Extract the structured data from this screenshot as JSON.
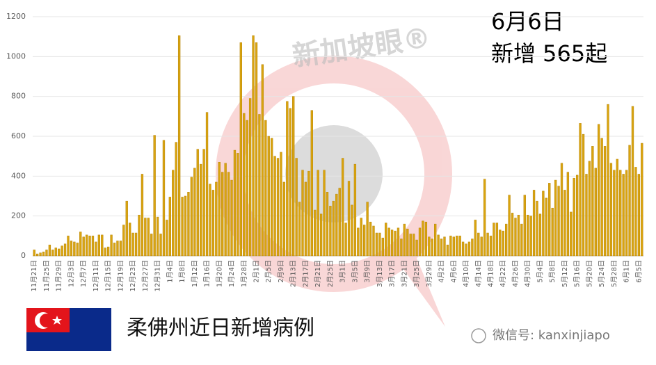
{
  "chart_data": {
    "type": "bar",
    "title": "6月6日",
    "subtitle": "新增 565起",
    "caption": "柔佛州近日新增病例",
    "watermark": "新加坡眼®",
    "source": "微信号: kanxinjiapo",
    "color": "#d9a40f",
    "grid": true,
    "ylim": [
      0,
      1200
    ],
    "yticks": [
      0,
      200,
      400,
      600,
      800,
      1000,
      1200
    ],
    "categories": [
      "11月21日",
      null,
      null,
      null,
      "11月25日",
      null,
      null,
      null,
      "11月29日",
      null,
      null,
      null,
      "12月3日",
      null,
      null,
      null,
      "12月7日",
      null,
      null,
      null,
      "12月11日",
      null,
      null,
      null,
      "12月15日",
      null,
      null,
      null,
      "12月19日",
      null,
      null,
      null,
      "12月23日",
      null,
      null,
      null,
      "12月27日",
      null,
      null,
      null,
      "12月31日",
      null,
      null,
      null,
      "1月4日",
      null,
      null,
      null,
      "1月8日",
      null,
      null,
      null,
      "1月12日",
      null,
      null,
      null,
      "1月16日",
      null,
      null,
      null,
      "1月20日",
      null,
      null,
      null,
      "1月24日",
      null,
      null,
      null,
      "1月28日",
      null,
      null,
      null,
      "2月1日",
      null,
      null,
      null,
      "2月5日",
      null,
      null,
      null,
      "2月9日",
      null,
      null,
      null,
      "2月13日",
      null,
      null,
      null,
      "2月17日",
      null,
      null,
      null,
      "2月21日",
      null,
      null,
      null,
      "2月25日",
      null,
      null,
      null,
      "3月1日",
      null,
      null,
      null,
      "3月5日",
      null,
      null,
      null,
      "3月9日",
      null,
      null,
      null,
      "3月13日",
      null,
      null,
      null,
      "3月17日",
      null,
      null,
      null,
      "3月21日",
      null,
      null,
      null,
      "3月25日",
      null,
      null,
      null,
      "3月29日",
      null,
      null,
      null,
      "4月2日",
      null,
      null,
      null,
      "4月6日",
      null,
      null,
      null,
      "4月10日",
      null,
      null,
      null,
      "4月14日",
      null,
      null,
      null,
      "4月18日",
      null,
      null,
      null,
      "4月22日",
      null,
      null,
      null,
      "4月26日",
      null,
      null,
      null,
      "4月30日",
      null,
      null,
      null,
      "5月4日",
      null,
      null,
      null,
      "5月8日",
      null,
      null,
      null,
      "5月12日",
      null,
      null,
      null,
      "5月16日",
      null,
      null,
      null,
      "5月20日",
      null,
      null,
      null,
      "5月24日",
      null,
      null,
      null,
      "5月28日",
      null,
      null,
      null,
      "6月1日",
      null,
      null,
      null,
      "6月5日",
      null
    ],
    "values": [
      30,
      10,
      15,
      20,
      30,
      55,
      30,
      40,
      35,
      50,
      60,
      100,
      75,
      70,
      65,
      120,
      95,
      105,
      100,
      100,
      70,
      105,
      105,
      40,
      45,
      105,
      65,
      75,
      75,
      155,
      275,
      165,
      115,
      115,
      205,
      410,
      190,
      190,
      110,
      605,
      195,
      110,
      580,
      180,
      295,
      430,
      570,
      1105,
      295,
      300,
      320,
      395,
      440,
      535,
      460,
      535,
      720,
      360,
      330,
      370,
      470,
      420,
      465,
      420,
      380,
      530,
      515,
      1070,
      715,
      680,
      790,
      1105,
      1070,
      710,
      960,
      680,
      600,
      590,
      500,
      490,
      520,
      370,
      775,
      740,
      800,
      490,
      270,
      430,
      370,
      425,
      730,
      230,
      430,
      210,
      430,
      320,
      250,
      275,
      310,
      340,
      490,
      165,
      375,
      255,
      460,
      140,
      190,
      155,
      270,
      170,
      150,
      115,
      115,
      90,
      165,
      140,
      130,
      125,
      140,
      85,
      160,
      135,
      110,
      110,
      80,
      140,
      175,
      170,
      95,
      85,
      160,
      105,
      85,
      95,
      55,
      100,
      95,
      100,
      100,
      70,
      60,
      70,
      85,
      180,
      115,
      95,
      385,
      115,
      100,
      165,
      165,
      130,
      125,
      160,
      305,
      215,
      190,
      205,
      160,
      305,
      205,
      200,
      330,
      275,
      210,
      325,
      290,
      365,
      240,
      380,
      350,
      465,
      330,
      420,
      220,
      390,
      405,
      665,
      610,
      410,
      475,
      550,
      440,
      660,
      590,
      550,
      760,
      465,
      430,
      485,
      430,
      410,
      430,
      555,
      750,
      445,
      410,
      565
    ]
  }
}
